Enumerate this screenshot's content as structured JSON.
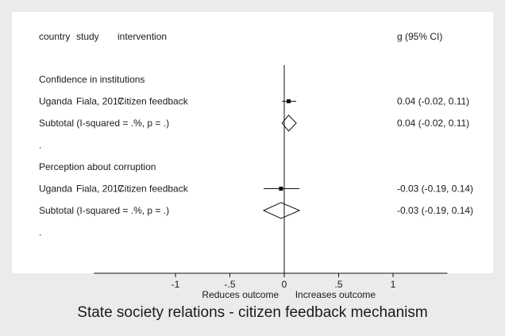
{
  "chart_data": {
    "type": "forest",
    "title": "State society relations - citizen feedback mechanism",
    "columns": {
      "country": "country",
      "study": "study",
      "intervention": "intervention",
      "effect": "g (95% CI)"
    },
    "groups": [
      {
        "label": "Confidence in institutions",
        "studies": [
          {
            "country": "Uganda",
            "study": "Fiala, 2017",
            "intervention": "Citizen feedback",
            "g": 0.04,
            "lo": -0.02,
            "hi": 0.11,
            "ci_text": "0.04 (-0.02, 0.11)"
          }
        ],
        "subtotal": {
          "label": "Subtotal  (I-squared = .%, p = .)",
          "g": 0.04,
          "lo": -0.02,
          "hi": 0.11,
          "ci_text": "0.04 (-0.02, 0.11)"
        },
        "spacer": "."
      },
      {
        "label": "Perception about corruption",
        "studies": [
          {
            "country": "Uganda",
            "study": "Fiala, 2017",
            "intervention": "Citizen feedback",
            "g": -0.03,
            "lo": -0.19,
            "hi": 0.14,
            "ci_text": "-0.03 (-0.19, 0.14)"
          }
        ],
        "subtotal": {
          "label": "Subtotal  (I-squared = .%, p = .)",
          "g": -0.03,
          "lo": -0.19,
          "hi": 0.14,
          "ci_text": "-0.03 (-0.19, 0.14)"
        },
        "spacer": "."
      }
    ],
    "x_ticks": [
      -1,
      -0.5,
      0,
      0.5,
      1
    ],
    "x_tick_labels": [
      "-1",
      "-.5",
      "0",
      ".5",
      "1"
    ],
    "xlim": [
      -1.75,
      1.5
    ],
    "reference_line": 0,
    "direction_labels": {
      "left": "Reduces outcome",
      "right": "Increases outcome"
    }
  }
}
